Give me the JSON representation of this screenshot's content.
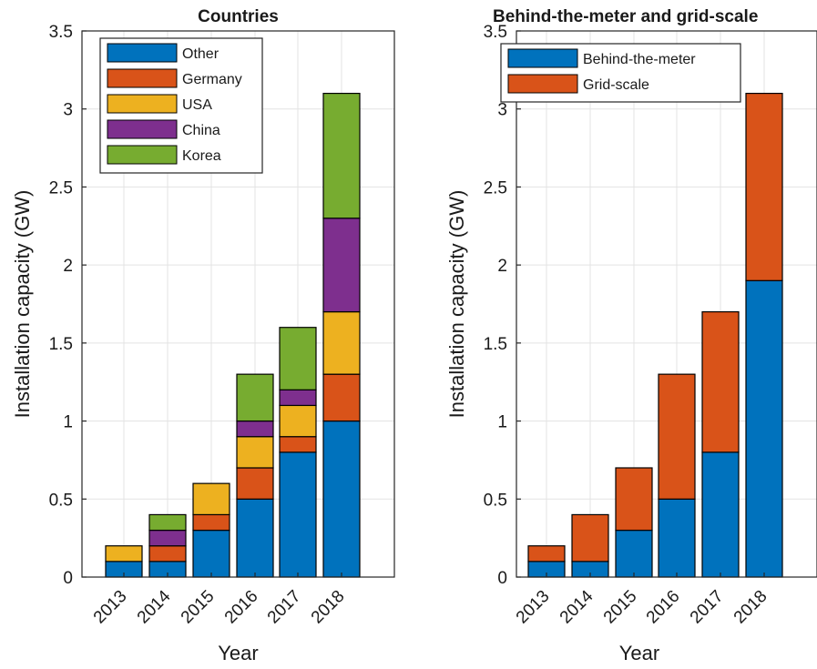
{
  "chart_data": [
    {
      "type": "bar",
      "stacked": true,
      "title": "Countries",
      "xlabel": "Year",
      "ylabel": "Installation capacity (GW)",
      "ylim": [
        0,
        3.5
      ],
      "yticks": [
        "0",
        "0.5",
        "1",
        "1.5",
        "2",
        "2.5",
        "3",
        "3.5"
      ],
      "grid": true,
      "legend_position": "top-left",
      "categories": [
        "2013",
        "2014",
        "2015",
        "2016",
        "2017",
        "2018"
      ],
      "series": [
        {
          "name": "Other",
          "color": "#0072BD",
          "values": [
            0.1,
            0.1,
            0.3,
            0.5,
            0.8,
            1.0
          ]
        },
        {
          "name": "Germany",
          "color": "#D95319",
          "values": [
            0.0,
            0.1,
            0.1,
            0.2,
            0.1,
            0.3
          ]
        },
        {
          "name": "USA",
          "color": "#EDB120",
          "values": [
            0.1,
            0.0,
            0.2,
            0.2,
            0.2,
            0.4
          ]
        },
        {
          "name": "China",
          "color": "#7E2F8E",
          "values": [
            0.0,
            0.1,
            0.0,
            0.1,
            0.1,
            0.6
          ]
        },
        {
          "name": "Korea",
          "color": "#77AC30",
          "values": [
            0.0,
            0.1,
            0.0,
            0.3,
            0.4,
            0.8
          ]
        }
      ]
    },
    {
      "type": "bar",
      "stacked": true,
      "title": "Behind-the-meter and grid-scale",
      "xlabel": "Year",
      "ylabel": "Installation capacity (GW)",
      "ylim": [
        0,
        3.5
      ],
      "yticks": [
        "0",
        "0.5",
        "1",
        "1.5",
        "2",
        "2.5",
        "3",
        "3.5"
      ],
      "grid": true,
      "legend_position": "top-left",
      "categories": [
        "2013",
        "2014",
        "2015",
        "2016",
        "2017",
        "2018"
      ],
      "series": [
        {
          "name": "Behind-the-meter",
          "color": "#0072BD",
          "values": [
            0.1,
            0.1,
            0.3,
            0.5,
            0.8,
            1.9
          ]
        },
        {
          "name": "Grid-scale",
          "color": "#D95319",
          "values": [
            0.1,
            0.3,
            0.4,
            0.8,
            0.9,
            1.2
          ]
        }
      ]
    }
  ]
}
